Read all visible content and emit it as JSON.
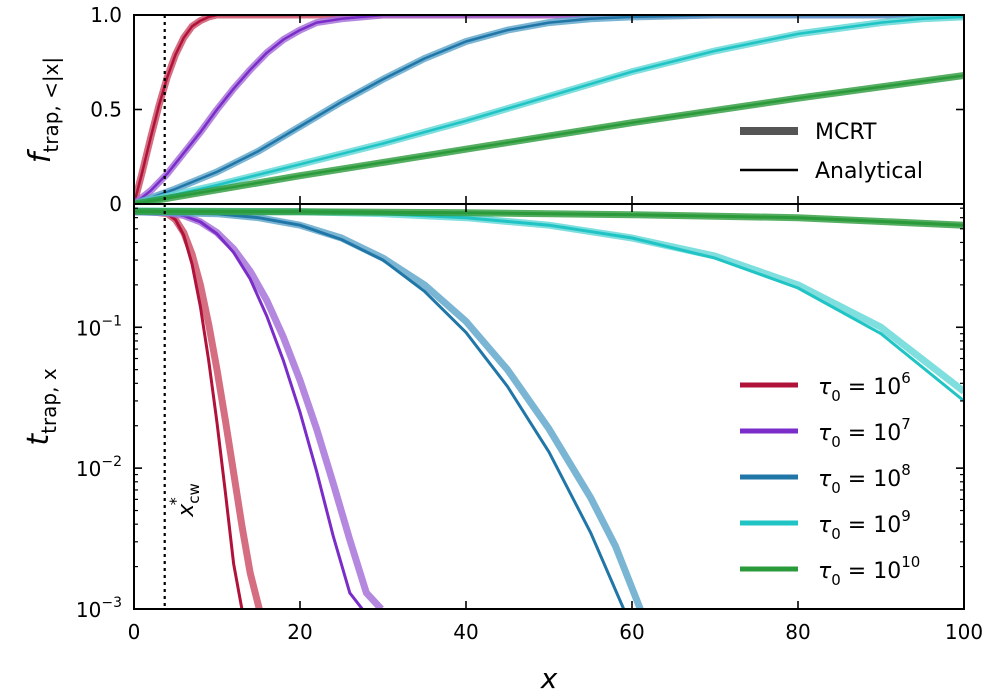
{
  "chart_data": [
    {
      "type": "line",
      "panel": "top",
      "ylabel": "f_trap, <|x|",
      "xlim": [
        0,
        100
      ],
      "ylim": [
        0,
        1
      ],
      "y_ticks": [
        {
          "value": 0,
          "label": "0"
        },
        {
          "value": 0.5,
          "label": "0.5"
        },
        {
          "value": 1.0,
          "label": "1.0"
        }
      ],
      "series": [
        {
          "name": "τ0 = 10^6",
          "color": "#b0123a",
          "mcrt_color": "#cc4a63",
          "x": [
            0,
            1,
            2,
            3,
            4,
            5,
            6,
            7,
            8,
            9,
            10,
            12,
            15,
            100
          ],
          "y": [
            0,
            0.17,
            0.35,
            0.52,
            0.67,
            0.79,
            0.88,
            0.94,
            0.97,
            0.99,
            1.0,
            1.0,
            1.0,
            1.0
          ]
        },
        {
          "name": "τ0 = 10^7",
          "color": "#7a2dc8",
          "mcrt_color": "#a36ad8",
          "x": [
            0,
            2,
            4,
            6,
            8,
            10,
            12,
            14,
            16,
            18,
            20,
            22,
            25,
            30,
            100
          ],
          "y": [
            0,
            0.07,
            0.16,
            0.27,
            0.38,
            0.5,
            0.61,
            0.71,
            0.8,
            0.87,
            0.92,
            0.96,
            0.98,
            1.0,
            1.0
          ]
        },
        {
          "name": "τ0 = 10^8",
          "color": "#2176a8",
          "mcrt_color": "#5aa3c9",
          "x": [
            0,
            5,
            10,
            15,
            20,
            25,
            30,
            35,
            40,
            45,
            50,
            55,
            60,
            70,
            100
          ],
          "y": [
            0,
            0.08,
            0.17,
            0.28,
            0.41,
            0.54,
            0.66,
            0.77,
            0.86,
            0.92,
            0.96,
            0.98,
            0.99,
            1.0,
            1.0
          ]
        },
        {
          "name": "τ0 = 10^9",
          "color": "#20c4c4",
          "mcrt_color": "#5fd6d6",
          "x": [
            0,
            10,
            20,
            30,
            40,
            50,
            60,
            70,
            80,
            90,
            95,
            100
          ],
          "y": [
            0,
            0.1,
            0.21,
            0.32,
            0.44,
            0.57,
            0.7,
            0.81,
            0.9,
            0.96,
            0.98,
            0.99
          ]
        },
        {
          "name": "τ0 = 10^10",
          "color": "#2a9a3a",
          "mcrt_color": "#2a9a3a",
          "x": [
            0,
            20,
            40,
            60,
            80,
            100
          ],
          "y": [
            0,
            0.15,
            0.29,
            0.43,
            0.56,
            0.68
          ]
        }
      ],
      "legend": {
        "position": "center-right",
        "entries": [
          {
            "label": "MCRT",
            "style": "thick",
            "color": "#555555"
          },
          {
            "label": "Analytical",
            "style": "thin",
            "color": "#000000"
          }
        ]
      }
    },
    {
      "type": "line",
      "panel": "bottom",
      "xlabel": "x",
      "ylabel": "t_trap, x",
      "yscale": "log",
      "xlim": [
        0,
        100
      ],
      "ylim": [
        0.001,
        0.75
      ],
      "x_ticks": [
        {
          "value": 0,
          "label": "0"
        },
        {
          "value": 20,
          "label": "20"
        },
        {
          "value": 40,
          "label": "40"
        },
        {
          "value": 60,
          "label": "60"
        },
        {
          "value": 80,
          "label": "80"
        },
        {
          "value": 100,
          "label": "100"
        }
      ],
      "y_ticks": [
        {
          "value": 0.001,
          "base": "10",
          "exp": "−3"
        },
        {
          "value": 0.01,
          "base": "10",
          "exp": "−2"
        },
        {
          "value": 0.1,
          "base": "10",
          "exp": "−1"
        }
      ],
      "series": [
        {
          "name": "τ0 = 10^6",
          "color": "#b0123a",
          "x": [
            0,
            2,
            4,
            5,
            6,
            7,
            8,
            9,
            10,
            11,
            12,
            13
          ],
          "y": [
            0.66,
            0.66,
            0.64,
            0.58,
            0.45,
            0.28,
            0.14,
            0.058,
            0.021,
            0.0068,
            0.0021,
            0.001
          ],
          "mcrt_x": [
            0,
            2,
            4,
            5,
            6,
            7,
            8,
            9,
            10,
            11,
            12,
            13,
            14,
            15.1
          ],
          "mcrt_y": [
            0.66,
            0.66,
            0.64,
            0.58,
            0.47,
            0.33,
            0.2,
            0.105,
            0.05,
            0.022,
            0.0093,
            0.0039,
            0.0018,
            0.001
          ]
        },
        {
          "name": "τ0 = 10^7",
          "color": "#7a2dc8",
          "x": [
            0,
            4,
            6,
            8,
            10,
            12,
            14,
            16,
            18,
            20,
            22,
            24,
            26,
            27.5
          ],
          "y": [
            0.66,
            0.65,
            0.62,
            0.56,
            0.46,
            0.34,
            0.22,
            0.12,
            0.058,
            0.025,
            0.0095,
            0.0033,
            0.0013,
            0.001
          ],
          "mcrt_x": [
            0,
            4,
            6,
            8,
            10,
            12,
            14,
            16,
            18,
            20,
            22,
            24,
            26,
            28,
            29.8
          ],
          "mcrt_y": [
            0.66,
            0.65,
            0.62,
            0.56,
            0.47,
            0.36,
            0.25,
            0.155,
            0.085,
            0.042,
            0.019,
            0.0078,
            0.0031,
            0.0013,
            0.001
          ]
        },
        {
          "name": "τ0 = 10^8",
          "color": "#2176a8",
          "x": [
            0,
            10,
            15,
            20,
            25,
            30,
            35,
            40,
            45,
            50,
            55,
            59
          ],
          "y": [
            0.66,
            0.64,
            0.6,
            0.53,
            0.42,
            0.3,
            0.18,
            0.092,
            0.038,
            0.013,
            0.0035,
            0.001
          ],
          "mcrt_x": [
            0,
            10,
            15,
            20,
            25,
            30,
            35,
            40,
            45,
            50,
            55,
            58,
            61
          ],
          "mcrt_y": [
            0.66,
            0.64,
            0.6,
            0.53,
            0.43,
            0.31,
            0.2,
            0.11,
            0.05,
            0.019,
            0.0062,
            0.0028,
            0.001
          ]
        },
        {
          "name": "τ0 = 10^9",
          "color": "#20c4c4",
          "x": [
            0,
            20,
            30,
            40,
            50,
            60,
            70,
            80,
            90,
            100
          ],
          "y": [
            0.67,
            0.66,
            0.64,
            0.6,
            0.53,
            0.43,
            0.31,
            0.19,
            0.09,
            0.03
          ],
          "mcrt_x": [
            0,
            20,
            30,
            40,
            50,
            60,
            70,
            80,
            90,
            100
          ],
          "mcrt_y": [
            0.67,
            0.66,
            0.64,
            0.6,
            0.53,
            0.43,
            0.32,
            0.2,
            0.1,
            0.035
          ]
        },
        {
          "name": "τ0 = 10^10",
          "color": "#2a9a3a",
          "x": [
            0,
            20,
            40,
            60,
            80,
            100
          ],
          "y": [
            0.665,
            0.66,
            0.65,
            0.63,
            0.6,
            0.53
          ],
          "mcrt_x": [
            0,
            20,
            40,
            60,
            80,
            100
          ],
          "mcrt_y": [
            0.665,
            0.66,
            0.65,
            0.63,
            0.6,
            0.53
          ]
        }
      ],
      "legend": {
        "position": "lower-right",
        "entries": [
          {
            "base": "τ",
            "sub": "0",
            "eq": " = 10",
            "exp": "6",
            "color": "#b0123a"
          },
          {
            "base": "τ",
            "sub": "0",
            "eq": " = 10",
            "exp": "7",
            "color": "#7a2dc8"
          },
          {
            "base": "τ",
            "sub": "0",
            "eq": " = 10",
            "exp": "8",
            "color": "#2176a8"
          },
          {
            "base": "τ",
            "sub": "0",
            "eq": " = 10",
            "exp": "9",
            "color": "#20c4c4"
          },
          {
            "base": "τ",
            "sub": "0",
            "eq": " = 10",
            "exp": "10",
            "color": "#2a9a3a"
          }
        ]
      }
    }
  ],
  "labels": {
    "xlabel": "x",
    "top_ylabel_main": "f",
    "top_ylabel_sub": "trap, <|x|",
    "bottom_ylabel_main": "t",
    "bottom_ylabel_sub": "trap, x",
    "annotation_main": "x",
    "annotation_sup": "*",
    "annotation_sub": "cw"
  },
  "xcw_value": 3.7
}
